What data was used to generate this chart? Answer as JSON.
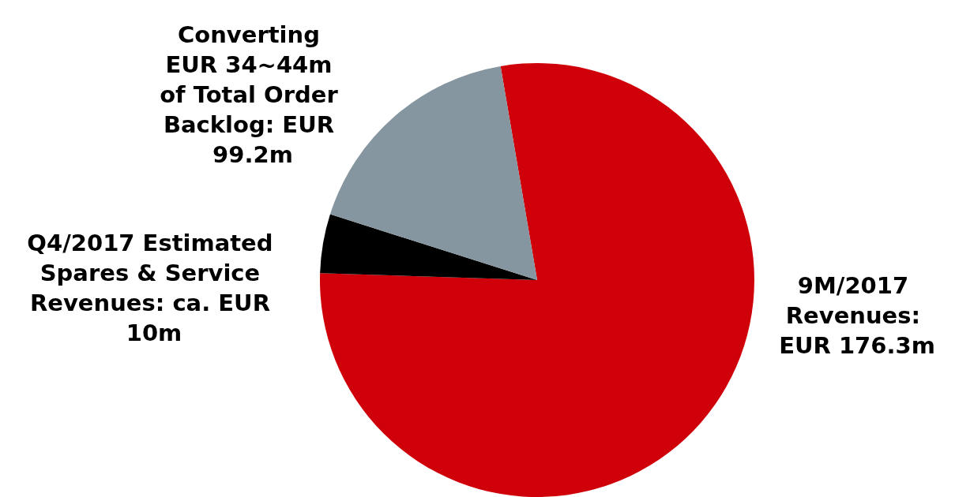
{
  "chart_data": {
    "type": "pie",
    "categories": [
      "9M/2017 Revenues: EUR 176.3m",
      "Q4/2017 Estimated Spares & Service Revenues: ca. EUR 10m",
      "Converting EUR 34~44m of Total Order Backlog: EUR 99.2m"
    ],
    "values": [
      78.2,
      4.4,
      17.4
    ],
    "colors": [
      "#d0000a",
      "#000000",
      "#8696a0"
    ],
    "legend": false
  }
}
